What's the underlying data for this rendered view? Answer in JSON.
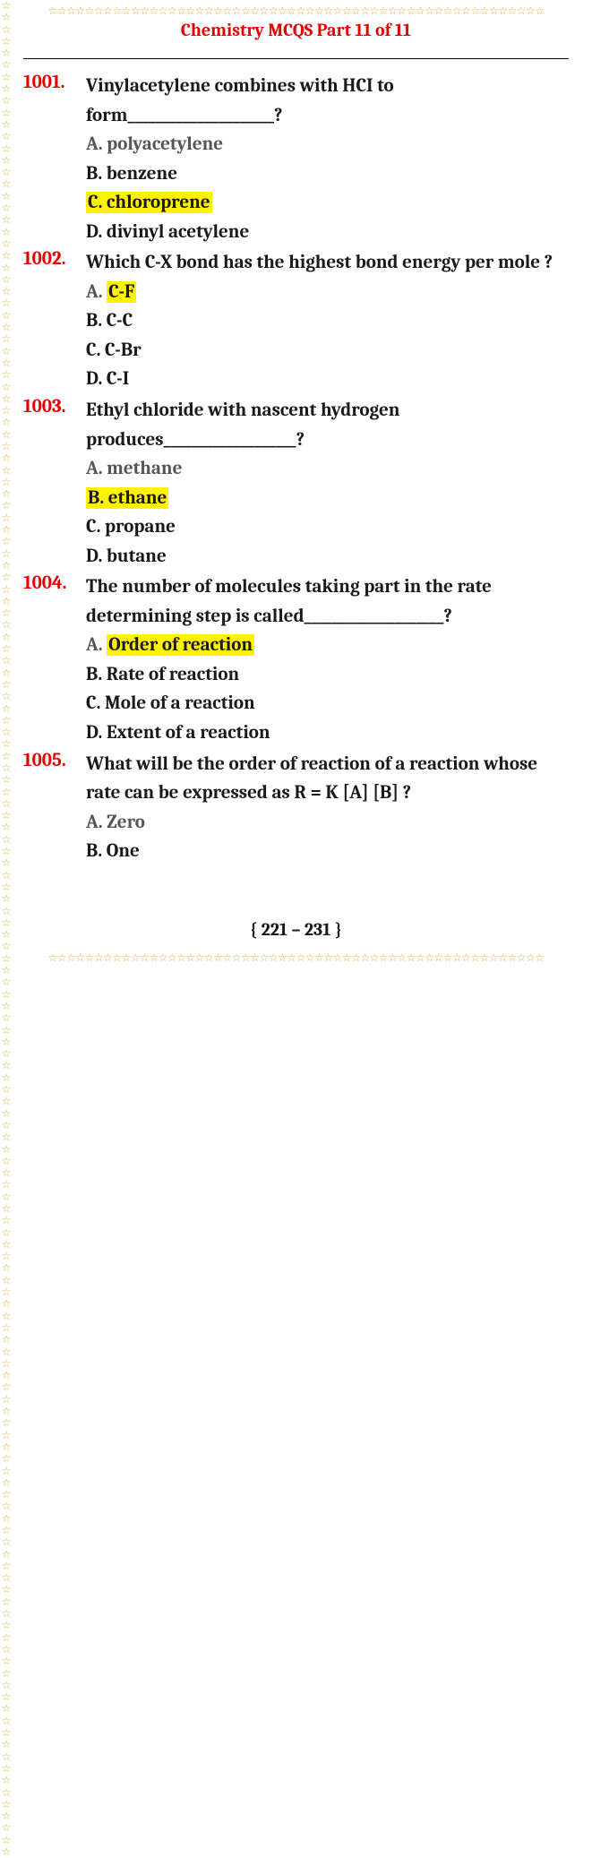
{
  "title": "Chemistry MCQS Part 11 of 11",
  "footer": "{ 221 – 231 }",
  "border_star": "☆",
  "colors": {
    "accent_red": "#e60000",
    "highlight": "#fff200",
    "star": "#d4af37",
    "text": "#1a1a1a",
    "gray_opt": "#555"
  },
  "questions": [
    {
      "num": "1001.",
      "text": "Vinylacetylene combines with HCI to form_____________________?",
      "options": [
        {
          "label": "A.",
          "text": "polyacetylene",
          "gray": true,
          "highlight": false
        },
        {
          "label": "B.",
          "text": "benzene",
          "gray": false,
          "highlight": false
        },
        {
          "label": "C.",
          "text": "chloroprene",
          "gray": false,
          "highlight": true
        },
        {
          "label": "D.",
          "text": "divinyl acetylene",
          "gray": false,
          "highlight": false
        }
      ]
    },
    {
      "num": "1002.",
      "text": "Which C-X bond has the highest bond energy per mole ?",
      "options": [
        {
          "label": "A.",
          "text": "C-F",
          "gray": true,
          "highlight": true,
          "hl_text_only": true
        },
        {
          "label": "B.",
          "text": "C-C",
          "gray": false,
          "highlight": false
        },
        {
          "label": "C.",
          "text": "C-Br",
          "gray": false,
          "highlight": false
        },
        {
          "label": "D.",
          "text": "C-I",
          "gray": false,
          "highlight": false
        }
      ]
    },
    {
      "num": "1003.",
      "text": "Ethyl chloride with nascent hydrogen produces___________________?",
      "options": [
        {
          "label": "A.",
          "text": "methane",
          "gray": true,
          "highlight": false
        },
        {
          "label": "B.",
          "text": "ethane",
          "gray": false,
          "highlight": true
        },
        {
          "label": "C.",
          "text": "propane",
          "gray": false,
          "highlight": false
        },
        {
          "label": "D.",
          "text": "butane",
          "gray": false,
          "highlight": false
        }
      ]
    },
    {
      "num": "1004.",
      "text": "The number of molecules taking part in the rate determining step is called____________________?",
      "options": [
        {
          "label": "A.",
          "text": "Order of reaction",
          "gray": true,
          "highlight": true,
          "hl_text_only": true
        },
        {
          "label": "B.",
          "text": "Rate of reaction",
          "gray": false,
          "highlight": false
        },
        {
          "label": "C.",
          "text": "Mole of a reaction",
          "gray": false,
          "highlight": false
        },
        {
          "label": "D.",
          "text": "Extent of a reaction",
          "gray": false,
          "highlight": false
        }
      ]
    },
    {
      "num": "1005.",
      "text": "What will be the order of reaction of a reaction whose rate can be expressed as R = K [A] [B] ?",
      "options": [
        {
          "label": "A.",
          "text": "Zero",
          "gray": true,
          "highlight": false
        },
        {
          "label": "B.",
          "text": "One",
          "gray": false,
          "highlight": false
        }
      ]
    }
  ]
}
